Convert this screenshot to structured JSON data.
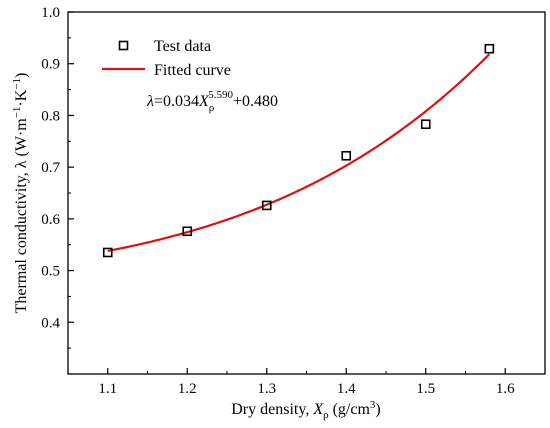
{
  "chart_data": {
    "type": "scatter",
    "x_axis": {
      "label": "Dry density, ",
      "label_var": "X",
      "label_sub": "ρ",
      "label_unit": " (g/cm",
      "label_unit_sup": "3",
      "label_unit_end": ")",
      "range": [
        1.05,
        1.65
      ],
      "ticks": [
        1.1,
        1.2,
        1.3,
        1.4,
        1.5,
        1.6
      ],
      "tick_labels": [
        "1.1",
        "1.2",
        "1.3",
        "1.4",
        "1.5",
        "1.6"
      ]
    },
    "y_axis": {
      "label": "Thermal conductivity, λ (W·m",
      "label_sup1": "−1",
      "label_mid": "·K",
      "label_sup2": "−1",
      "label_end": ")",
      "range": [
        0.3,
        1.0
      ],
      "ticks": [
        0.4,
        0.5,
        0.6,
        0.7,
        0.8,
        0.9,
        1.0
      ],
      "tick_labels": [
        "0.4",
        "0.5",
        "0.6",
        "0.7",
        "0.8",
        "0.9",
        "1.0"
      ]
    },
    "series": [
      {
        "name": "Test data",
        "kind": "scatter",
        "marker": "open-square",
        "color": "#000000",
        "x": [
          1.1,
          1.2,
          1.3,
          1.4,
          1.5,
          1.58
        ],
        "y": [
          0.535,
          0.576,
          0.626,
          0.722,
          0.783,
          0.929
        ]
      },
      {
        "name": "Fitted curve",
        "kind": "line",
        "color": "#e01010",
        "equation": {
          "lhs": "λ",
          "mid": "=0.034",
          "var": "X",
          "sub": "ρ",
          "sup": "5.590",
          "tail": "+0.480"
        },
        "coef_a": 0.034,
        "exponent": 5.59,
        "intercept": 0.48,
        "x_range": [
          1.1,
          1.58
        ]
      }
    ],
    "legend_position": "top-left",
    "grid": false
  }
}
